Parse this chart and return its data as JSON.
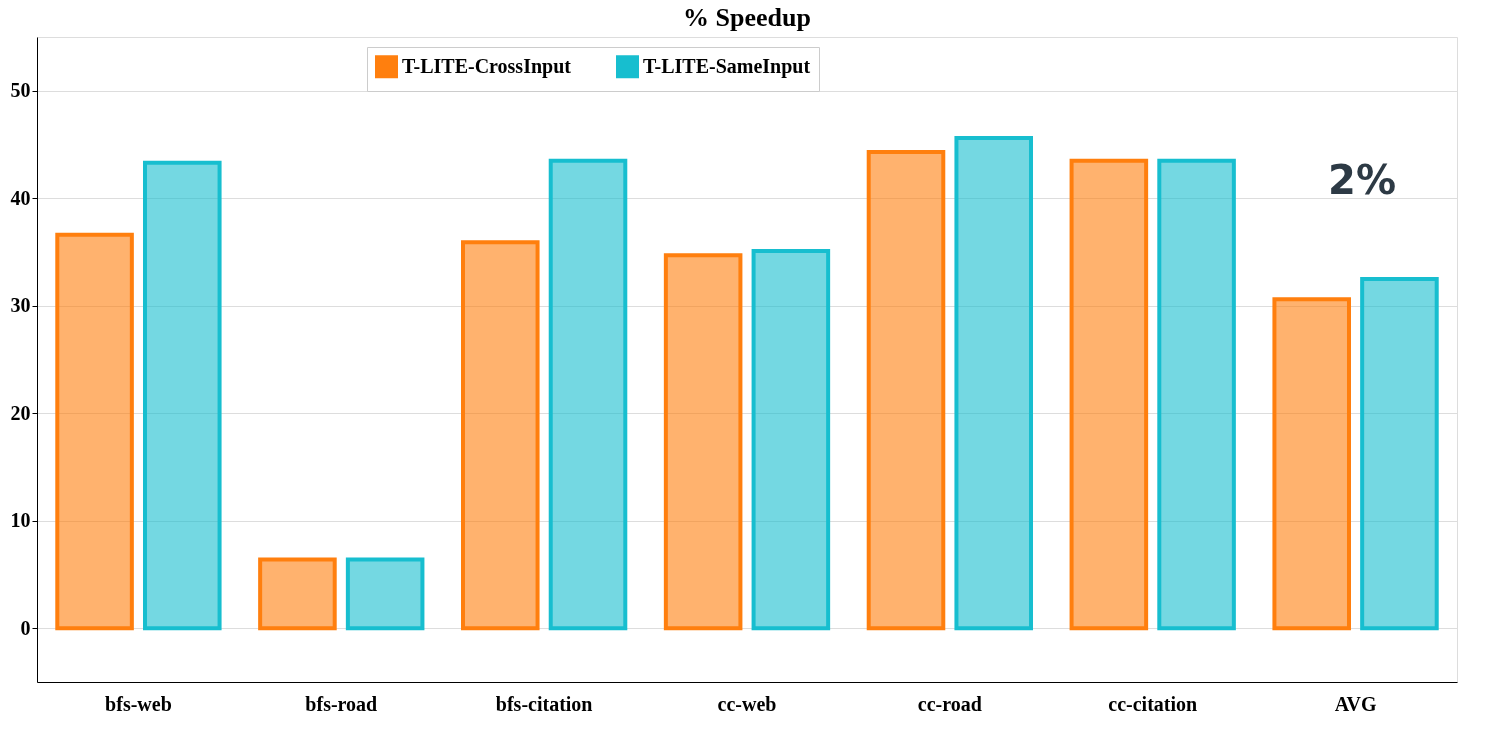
{
  "chart_data": {
    "type": "bar",
    "title": "% Speedup",
    "categories": [
      "bfs-web",
      "bfs-road",
      "bfs-citation",
      "cc-web",
      "cc-road",
      "cc-citation",
      "AVG"
    ],
    "series": [
      {
        "name": "T-LITE-CrossInput",
        "color": "#ff7f0e",
        "values": [
          36.6,
          6.4,
          35.9,
          34.7,
          44.3,
          43.5,
          30.6
        ]
      },
      {
        "name": "T-LITE-SameInput",
        "color": "#17becf",
        "values": [
          43.3,
          6.4,
          43.5,
          35.1,
          45.6,
          43.5,
          32.5
        ]
      }
    ],
    "ylim": [
      -5,
      55
    ],
    "yticks": [
      0,
      10,
      20,
      30,
      40,
      50
    ],
    "grid": "y",
    "legend": "top",
    "annotations": [
      "2%"
    ]
  }
}
